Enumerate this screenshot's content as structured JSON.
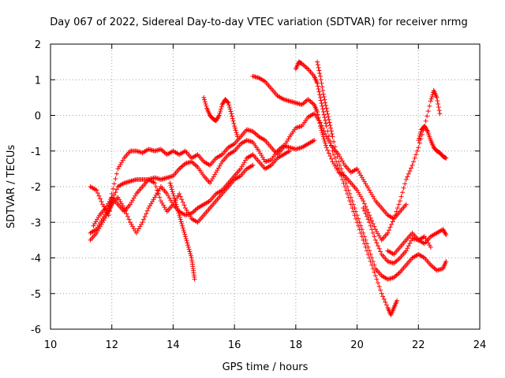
{
  "chart_data": {
    "type": "scatter",
    "title": "Day 067 of 2022, Sidereal Day-to-day VTEC variation (SDTVAR) for receiver nrmg",
    "xlabel": "GPS time / hours",
    "ylabel": "SDTVAR / TECUs",
    "xlim": [
      10,
      24
    ],
    "ylim": [
      -6,
      2
    ],
    "xticks": [
      "10",
      "12",
      "14",
      "16",
      "18",
      "20",
      "22",
      "24"
    ],
    "yticks": [
      "2",
      "1",
      "0",
      "-1",
      "-2",
      "-3",
      "-4",
      "-5",
      "-6"
    ],
    "grid": true,
    "marker": "+",
    "color": "#ff0000",
    "series": [
      {
        "name": "track-1",
        "points": [
          [
            11.3,
            -2.0
          ],
          [
            11.5,
            -2.1
          ],
          [
            11.7,
            -2.5
          ],
          [
            11.9,
            -2.8
          ],
          [
            12.0,
            -2.2
          ],
          [
            12.2,
            -1.5
          ],
          [
            12.4,
            -1.2
          ],
          [
            12.6,
            -1.0
          ],
          [
            12.8,
            -1.0
          ],
          [
            13.0,
            -1.05
          ],
          [
            13.2,
            -0.95
          ],
          [
            13.4,
            -1.0
          ],
          [
            13.6,
            -0.95
          ],
          [
            13.8,
            -1.1
          ],
          [
            14.0,
            -1.0
          ],
          [
            14.2,
            -1.1
          ],
          [
            14.4,
            -1.0
          ],
          [
            14.6,
            -1.2
          ],
          [
            14.8,
            -1.1
          ],
          [
            15.0,
            -1.3
          ],
          [
            15.2,
            -1.4
          ],
          [
            15.4,
            -1.2
          ],
          [
            15.6,
            -1.1
          ],
          [
            15.8,
            -0.9
          ],
          [
            16.0,
            -0.8
          ],
          [
            16.2,
            -0.6
          ],
          [
            16.4,
            -0.4
          ],
          [
            16.6,
            -0.45
          ],
          [
            16.8,
            -0.6
          ],
          [
            17.0,
            -0.7
          ],
          [
            17.2,
            -0.9
          ],
          [
            17.4,
            -1.1
          ],
          [
            17.6,
            -0.9
          ],
          [
            17.8,
            -0.6
          ],
          [
            18.0,
            -0.35
          ],
          [
            18.2,
            -0.3
          ],
          [
            18.4,
            -0.05
          ],
          [
            18.6,
            0.05
          ],
          [
            18.8,
            -0.2
          ],
          [
            19.0,
            -0.6
          ],
          [
            19.2,
            -0.9
          ],
          [
            19.4,
            -1.1
          ],
          [
            19.6,
            -1.4
          ],
          [
            19.8,
            -1.6
          ],
          [
            20.0,
            -1.5
          ],
          [
            20.2,
            -1.8
          ],
          [
            20.4,
            -2.1
          ],
          [
            20.6,
            -2.4
          ],
          [
            20.8,
            -2.6
          ],
          [
            21.0,
            -2.8
          ],
          [
            21.2,
            -2.9
          ],
          [
            21.4,
            -2.7
          ],
          [
            21.6,
            -2.5
          ]
        ]
      },
      {
        "name": "track-2",
        "points": [
          [
            11.3,
            -3.3
          ],
          [
            11.5,
            -3.2
          ],
          [
            11.7,
            -2.9
          ],
          [
            11.9,
            -2.6
          ],
          [
            12.0,
            -2.4
          ],
          [
            12.2,
            -2.0
          ],
          [
            12.4,
            -1.9
          ],
          [
            12.6,
            -1.85
          ],
          [
            12.8,
            -1.8
          ],
          [
            13.0,
            -1.8
          ],
          [
            13.2,
            -1.8
          ],
          [
            13.4,
            -1.75
          ],
          [
            13.6,
            -1.8
          ],
          [
            13.8,
            -1.75
          ],
          [
            14.0,
            -1.7
          ],
          [
            14.2,
            -1.5
          ],
          [
            14.4,
            -1.35
          ],
          [
            14.6,
            -1.3
          ],
          [
            14.8,
            -1.45
          ],
          [
            15.0,
            -1.7
          ],
          [
            15.2,
            -1.9
          ],
          [
            15.4,
            -1.6
          ],
          [
            15.6,
            -1.3
          ],
          [
            15.8,
            -1.1
          ],
          [
            16.0,
            -1.0
          ],
          [
            16.2,
            -0.8
          ],
          [
            16.4,
            -0.7
          ],
          [
            16.6,
            -0.75
          ],
          [
            16.8,
            -1.0
          ],
          [
            17.0,
            -1.3
          ],
          [
            17.2,
            -1.25
          ],
          [
            17.4,
            -1.0
          ],
          [
            17.6,
            -0.85
          ],
          [
            17.8,
            -0.9
          ],
          [
            18.0,
            -0.95
          ],
          [
            18.2,
            -0.9
          ],
          [
            18.4,
            -0.8
          ],
          [
            18.6,
            -0.7
          ]
        ]
      },
      {
        "name": "track-3",
        "points": [
          [
            11.3,
            -3.5
          ],
          [
            11.5,
            -3.3
          ],
          [
            11.7,
            -3.0
          ],
          [
            11.9,
            -2.7
          ],
          [
            12.0,
            -2.5
          ],
          [
            12.2,
            -2.3
          ],
          [
            12.4,
            -2.6
          ],
          [
            12.6,
            -3.0
          ],
          [
            12.8,
            -3.3
          ],
          [
            13.0,
            -3.0
          ],
          [
            13.2,
            -2.6
          ],
          [
            13.4,
            -2.3
          ],
          [
            13.6,
            -2.0
          ],
          [
            13.8,
            -2.2
          ],
          [
            14.0,
            -2.5
          ],
          [
            14.2,
            -2.7
          ],
          [
            14.4,
            -2.8
          ],
          [
            14.6,
            -2.75
          ],
          [
            14.8,
            -2.6
          ],
          [
            15.0,
            -2.5
          ],
          [
            15.2,
            -2.4
          ],
          [
            15.4,
            -2.2
          ],
          [
            15.6,
            -2.1
          ],
          [
            15.8,
            -1.9
          ],
          [
            16.0,
            -1.7
          ],
          [
            16.2,
            -1.5
          ],
          [
            16.4,
            -1.2
          ],
          [
            16.6,
            -1.1
          ],
          [
            16.8,
            -1.3
          ],
          [
            17.0,
            -1.5
          ],
          [
            17.2,
            -1.4
          ],
          [
            17.4,
            -1.2
          ],
          [
            17.6,
            -1.1
          ],
          [
            17.8,
            -1.0
          ]
        ]
      },
      {
        "name": "track-4",
        "points": [
          [
            11.4,
            -3.1
          ],
          [
            11.6,
            -2.8
          ],
          [
            11.8,
            -2.6
          ],
          [
            12.0,
            -2.3
          ],
          [
            12.2,
            -2.5
          ],
          [
            12.4,
            -2.7
          ],
          [
            12.6,
            -2.5
          ],
          [
            12.8,
            -2.2
          ],
          [
            13.0,
            -2.0
          ],
          [
            13.2,
            -1.8
          ],
          [
            13.4,
            -1.9
          ],
          [
            13.6,
            -2.4
          ],
          [
            13.8,
            -2.7
          ],
          [
            14.0,
            -2.5
          ],
          [
            14.2,
            -2.2
          ],
          [
            14.4,
            -2.6
          ],
          [
            14.6,
            -2.9
          ],
          [
            14.8,
            -3.0
          ],
          [
            15.0,
            -2.8
          ],
          [
            15.2,
            -2.6
          ],
          [
            15.4,
            -2.4
          ],
          [
            15.6,
            -2.2
          ],
          [
            15.8,
            -2.0
          ],
          [
            16.0,
            -1.8
          ],
          [
            16.2,
            -1.7
          ],
          [
            16.4,
            -1.5
          ],
          [
            16.6,
            -1.4
          ]
        ]
      },
      {
        "name": "track-5",
        "points": [
          [
            13.9,
            -1.9
          ],
          [
            14.0,
            -2.2
          ],
          [
            14.1,
            -2.5
          ],
          [
            14.2,
            -2.8
          ],
          [
            14.3,
            -3.1
          ],
          [
            14.4,
            -3.4
          ],
          [
            14.5,
            -3.7
          ],
          [
            14.6,
            -4.0
          ],
          [
            14.65,
            -4.3
          ],
          [
            14.7,
            -4.6
          ]
        ]
      },
      {
        "name": "track-6",
        "points": [
          [
            15.0,
            0.5
          ],
          [
            15.1,
            0.2
          ],
          [
            15.2,
            0.0
          ],
          [
            15.3,
            -0.1
          ],
          [
            15.4,
            -0.15
          ],
          [
            15.5,
            0.0
          ],
          [
            15.6,
            0.3
          ],
          [
            15.7,
            0.45
          ],
          [
            15.8,
            0.35
          ],
          [
            15.9,
            0.05
          ],
          [
            16.0,
            -0.3
          ],
          [
            16.1,
            -0.6
          ]
        ]
      },
      {
        "name": "track-7",
        "points": [
          [
            16.6,
            1.1
          ],
          [
            16.8,
            1.05
          ],
          [
            17.0,
            0.95
          ],
          [
            17.2,
            0.75
          ],
          [
            17.4,
            0.55
          ],
          [
            17.6,
            0.45
          ],
          [
            17.8,
            0.4
          ],
          [
            18.0,
            0.35
          ],
          [
            18.2,
            0.3
          ],
          [
            18.4,
            0.45
          ],
          [
            18.6,
            0.3
          ],
          [
            18.7,
            0.1
          ],
          [
            18.8,
            -0.3
          ],
          [
            18.9,
            -0.6
          ],
          [
            19.0,
            -0.9
          ],
          [
            19.2,
            -1.3
          ],
          [
            19.4,
            -1.6
          ],
          [
            19.6,
            -1.7
          ],
          [
            19.8,
            -1.9
          ],
          [
            20.0,
            -2.1
          ],
          [
            20.2,
            -2.4
          ],
          [
            20.4,
            -2.8
          ],
          [
            20.6,
            -3.2
          ],
          [
            20.8,
            -3.5
          ],
          [
            21.0,
            -3.3
          ],
          [
            21.2,
            -2.9
          ],
          [
            21.4,
            -2.4
          ],
          [
            21.6,
            -1.8
          ],
          [
            21.8,
            -1.4
          ],
          [
            22.0,
            -0.9
          ],
          [
            22.2,
            -0.3
          ],
          [
            22.4,
            0.4
          ],
          [
            22.5,
            0.7
          ],
          [
            22.6,
            0.5
          ],
          [
            22.7,
            0.05
          ]
        ]
      },
      {
        "name": "track-8",
        "points": [
          [
            18.0,
            1.3
          ],
          [
            18.1,
            1.5
          ],
          [
            18.2,
            1.45
          ],
          [
            18.4,
            1.3
          ],
          [
            18.6,
            1.1
          ],
          [
            18.7,
            0.9
          ],
          [
            18.8,
            0.5
          ],
          [
            18.9,
            0.1
          ],
          [
            19.0,
            -0.3
          ],
          [
            19.2,
            -1.0
          ],
          [
            19.4,
            -1.5
          ],
          [
            19.6,
            -2.0
          ],
          [
            19.8,
            -2.5
          ],
          [
            20.0,
            -3.0
          ],
          [
            20.2,
            -3.5
          ],
          [
            20.4,
            -4.0
          ],
          [
            20.6,
            -4.5
          ],
          [
            20.8,
            -5.0
          ],
          [
            21.0,
            -5.4
          ],
          [
            21.1,
            -5.6
          ],
          [
            21.2,
            -5.4
          ],
          [
            21.3,
            -5.2
          ]
        ]
      },
      {
        "name": "track-9",
        "points": [
          [
            18.7,
            1.5
          ],
          [
            18.8,
            1.1
          ],
          [
            18.9,
            0.6
          ],
          [
            19.0,
            0.2
          ],
          [
            19.1,
            -0.2
          ],
          [
            19.2,
            -0.6
          ],
          [
            19.4,
            -1.3
          ],
          [
            19.6,
            -1.8
          ],
          [
            19.8,
            -2.3
          ],
          [
            20.0,
            -2.8
          ],
          [
            20.2,
            -3.3
          ],
          [
            20.4,
            -3.8
          ],
          [
            20.6,
            -4.3
          ],
          [
            20.8,
            -4.5
          ],
          [
            21.0,
            -4.6
          ],
          [
            21.2,
            -4.55
          ],
          [
            21.4,
            -4.4
          ],
          [
            21.6,
            -4.2
          ],
          [
            21.8,
            -4.0
          ],
          [
            22.0,
            -3.9
          ],
          [
            22.2,
            -4.0
          ],
          [
            22.4,
            -4.2
          ],
          [
            22.6,
            -4.35
          ],
          [
            22.8,
            -4.3
          ],
          [
            22.9,
            -4.1
          ]
        ]
      },
      {
        "name": "track-10",
        "points": [
          [
            20.2,
            -2.6
          ],
          [
            20.4,
            -3.0
          ],
          [
            20.6,
            -3.5
          ],
          [
            20.8,
            -3.9
          ],
          [
            21.0,
            -4.1
          ],
          [
            21.2,
            -4.15
          ],
          [
            21.4,
            -4.0
          ],
          [
            21.6,
            -3.8
          ],
          [
            21.8,
            -3.45
          ],
          [
            22.0,
            -3.5
          ],
          [
            22.2,
            -3.6
          ],
          [
            22.4,
            -3.4
          ],
          [
            22.6,
            -3.3
          ],
          [
            22.8,
            -3.2
          ],
          [
            22.9,
            -3.35
          ]
        ]
      },
      {
        "name": "track-11",
        "points": [
          [
            21.0,
            -3.8
          ],
          [
            21.2,
            -3.9
          ],
          [
            21.4,
            -3.7
          ],
          [
            21.6,
            -3.5
          ],
          [
            21.8,
            -3.3
          ],
          [
            22.0,
            -3.5
          ],
          [
            22.2,
            -3.4
          ],
          [
            22.4,
            -3.7
          ]
        ]
      },
      {
        "name": "track-12",
        "points": [
          [
            22.0,
            -0.7
          ],
          [
            22.1,
            -0.4
          ],
          [
            22.2,
            -0.3
          ],
          [
            22.3,
            -0.45
          ],
          [
            22.4,
            -0.7
          ],
          [
            22.5,
            -0.9
          ],
          [
            22.6,
            -1.0
          ],
          [
            22.7,
            -1.05
          ],
          [
            22.8,
            -1.15
          ],
          [
            22.9,
            -1.2
          ]
        ]
      }
    ]
  }
}
